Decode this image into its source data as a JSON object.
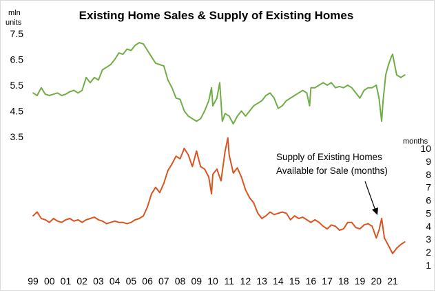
{
  "chart_data": {
    "type": "line",
    "title": "Existing Home Sales & Supply of Existing Homes",
    "left_axis": {
      "unit_line1": "mln",
      "unit_line2": "units",
      "ticks": [
        "7.5",
        "6.5",
        "5.5",
        "4.5",
        "3.5"
      ],
      "range": [
        3.5,
        7.5
      ]
    },
    "right_axis": {
      "unit": "months",
      "ticks": [
        "10",
        "9",
        "8",
        "7",
        "6",
        "5",
        "4",
        "3",
        "2",
        "1"
      ],
      "range": [
        1,
        10
      ]
    },
    "x_ticks": [
      "99",
      "00",
      "01",
      "02",
      "03",
      "04",
      "05",
      "06",
      "07",
      "08",
      "09",
      "10",
      "11",
      "12",
      "13",
      "14",
      "15",
      "16",
      "17",
      "18",
      "19",
      "20",
      "21"
    ],
    "grid": false,
    "legend": "none",
    "annotation": {
      "line1": "Supply of Existing Homes",
      "line2": "Available  for Sale (months)"
    },
    "colors": {
      "sales": "#70ad47",
      "supply": "#d9541e"
    },
    "series": [
      {
        "axis": "left",
        "color": "#70ad47",
        "x": [
          1999.0,
          1999.25,
          1999.5,
          1999.75,
          2000.0,
          2000.25,
          2000.5,
          2000.75,
          2001.0,
          2001.25,
          2001.5,
          2001.75,
          2002.0,
          2002.25,
          2002.5,
          2002.75,
          2003.0,
          2003.25,
          2003.5,
          2003.75,
          2004.0,
          2004.25,
          2004.5,
          2004.75,
          2005.0,
          2005.25,
          2005.5,
          2005.75,
          2006.0,
          2006.25,
          2006.5,
          2006.75,
          2007.0,
          2007.25,
          2007.5,
          2007.75,
          2008.0,
          2008.25,
          2008.5,
          2008.75,
          2009.0,
          2009.25,
          2009.5,
          2009.75,
          2009.92,
          2010.0,
          2010.25,
          2010.42,
          2010.58,
          2010.75,
          2011.0,
          2011.25,
          2011.5,
          2011.75,
          2012.0,
          2012.25,
          2012.5,
          2012.75,
          2013.0,
          2013.25,
          2013.5,
          2013.75,
          2014.0,
          2014.25,
          2014.5,
          2014.75,
          2015.0,
          2015.25,
          2015.5,
          2015.75,
          2015.92,
          2016.0,
          2016.25,
          2016.5,
          2016.75,
          2017.0,
          2017.25,
          2017.5,
          2017.75,
          2018.0,
          2018.25,
          2018.5,
          2018.75,
          2019.0,
          2019.25,
          2019.5,
          2019.75,
          2020.0,
          2020.17,
          2020.33,
          2020.42,
          2020.58,
          2020.75,
          2020.92,
          2021.0,
          2021.25,
          2021.5,
          2021.75
        ],
        "values": [
          5.2,
          5.1,
          5.4,
          5.15,
          5.1,
          5.15,
          5.2,
          5.1,
          5.15,
          5.25,
          5.3,
          5.2,
          5.3,
          5.8,
          5.6,
          5.8,
          5.7,
          6.1,
          6.2,
          6.3,
          6.5,
          6.75,
          6.7,
          6.9,
          6.85,
          7.05,
          7.15,
          7.1,
          6.85,
          6.6,
          6.35,
          6.3,
          6.25,
          5.7,
          5.4,
          5.0,
          4.95,
          4.5,
          4.3,
          4.2,
          4.1,
          4.2,
          4.5,
          4.9,
          5.4,
          4.7,
          5.0,
          5.6,
          4.1,
          4.4,
          4.3,
          4.0,
          4.3,
          4.5,
          4.3,
          4.5,
          4.7,
          4.8,
          4.9,
          5.1,
          5.2,
          5.0,
          4.6,
          4.7,
          4.9,
          5.0,
          5.1,
          5.2,
          5.3,
          5.2,
          4.7,
          5.4,
          5.4,
          5.5,
          5.6,
          5.5,
          5.6,
          5.4,
          5.45,
          5.4,
          5.5,
          5.4,
          5.2,
          5.0,
          5.3,
          5.4,
          5.4,
          5.5,
          5.0,
          4.1,
          4.9,
          5.9,
          6.3,
          6.6,
          6.7,
          5.9,
          5.8,
          5.9
        ]
      },
      {
        "axis": "right",
        "color": "#d9541e",
        "x": [
          1999.0,
          1999.25,
          1999.5,
          1999.75,
          2000.0,
          2000.25,
          2000.5,
          2000.75,
          2001.0,
          2001.25,
          2001.5,
          2001.75,
          2002.0,
          2002.25,
          2002.5,
          2002.75,
          2003.0,
          2003.25,
          2003.5,
          2003.75,
          2004.0,
          2004.25,
          2004.5,
          2004.75,
          2005.0,
          2005.25,
          2005.5,
          2005.75,
          2006.0,
          2006.25,
          2006.5,
          2006.75,
          2007.0,
          2007.25,
          2007.5,
          2007.75,
          2008.0,
          2008.25,
          2008.5,
          2008.75,
          2009.0,
          2009.25,
          2009.5,
          2009.75,
          2009.92,
          2010.0,
          2010.25,
          2010.5,
          2010.75,
          2010.92,
          2011.0,
          2011.25,
          2011.5,
          2011.75,
          2012.0,
          2012.25,
          2012.5,
          2012.75,
          2013.0,
          2013.25,
          2013.5,
          2013.75,
          2014.0,
          2014.25,
          2014.5,
          2014.75,
          2015.0,
          2015.25,
          2015.5,
          2015.75,
          2016.0,
          2016.25,
          2016.5,
          2016.75,
          2017.0,
          2017.25,
          2017.5,
          2017.75,
          2018.0,
          2018.25,
          2018.5,
          2018.75,
          2019.0,
          2019.25,
          2019.5,
          2019.75,
          2020.0,
          2020.17,
          2020.33,
          2020.5,
          2020.75,
          2021.0,
          2021.25,
          2021.5,
          2021.75
        ],
        "values": [
          4.8,
          5.1,
          4.6,
          4.5,
          4.3,
          4.6,
          4.4,
          4.3,
          4.5,
          4.6,
          4.4,
          4.5,
          4.3,
          4.5,
          4.6,
          4.7,
          4.5,
          4.4,
          4.2,
          4.3,
          4.4,
          4.3,
          4.3,
          4.2,
          4.3,
          4.5,
          4.6,
          4.8,
          5.5,
          6.5,
          7.0,
          6.6,
          7.3,
          8.3,
          8.8,
          9.4,
          9.2,
          10.0,
          9.5,
          8.6,
          9.8,
          8.6,
          8.4,
          7.8,
          6.5,
          8.0,
          8.4,
          7.5,
          9.8,
          10.8,
          9.5,
          8.1,
          8.5,
          7.8,
          6.8,
          6.2,
          5.8,
          5.0,
          4.6,
          4.8,
          5.1,
          4.9,
          5.0,
          5.1,
          5.0,
          4.5,
          4.8,
          4.6,
          4.7,
          4.5,
          4.3,
          4.5,
          4.3,
          4.0,
          3.8,
          4.1,
          4.0,
          3.7,
          3.8,
          4.3,
          4.3,
          3.9,
          3.8,
          4.1,
          4.2,
          4.0,
          3.1,
          3.7,
          4.6,
          3.1,
          2.5,
          1.9,
          2.3,
          2.6,
          2.8
        ]
      }
    ]
  }
}
